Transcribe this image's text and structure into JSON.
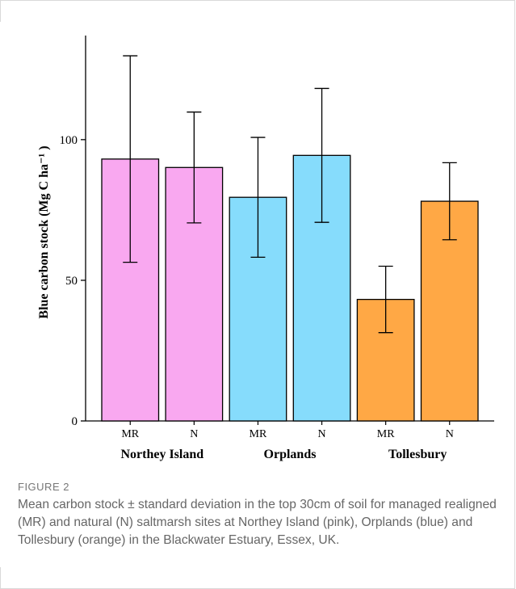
{
  "figure": {
    "label": "FIGURE 2",
    "caption": "Mean carbon stock ± standard deviation in the top 30cm of soil for managed realigned (MR) and natural (N) saltmarsh sites at Northey Island (pink), Orplands (blue) and Tollesbury (orange) in the Blackwater Estuary, Essex, UK."
  },
  "chart_data": {
    "type": "bar",
    "ylabel": "Blue carbon  stock (Mg C ha⁻¹ )",
    "ylim": [
      0,
      137
    ],
    "yticks": [
      0,
      50,
      100
    ],
    "grid": false,
    "groups": [
      {
        "name": "Northey Island",
        "color": "#F9A8F0",
        "bars": [
          {
            "label": "MR",
            "value": 93.1,
            "sd": 36.7
          },
          {
            "label": "N",
            "value": 90.1,
            "sd": 19.7
          }
        ]
      },
      {
        "name": "Orplands",
        "color": "#86DCFC",
        "bars": [
          {
            "label": "MR",
            "value": 79.5,
            "sd": 21.3
          },
          {
            "label": "N",
            "value": 94.4,
            "sd": 23.8
          }
        ]
      },
      {
        "name": "Tollesbury",
        "color": "#FFA845",
        "bars": [
          {
            "label": "MR",
            "value": 43.2,
            "sd": 11.8
          },
          {
            "label": "N",
            "value": 78.1,
            "sd": 13.7
          }
        ]
      }
    ]
  }
}
